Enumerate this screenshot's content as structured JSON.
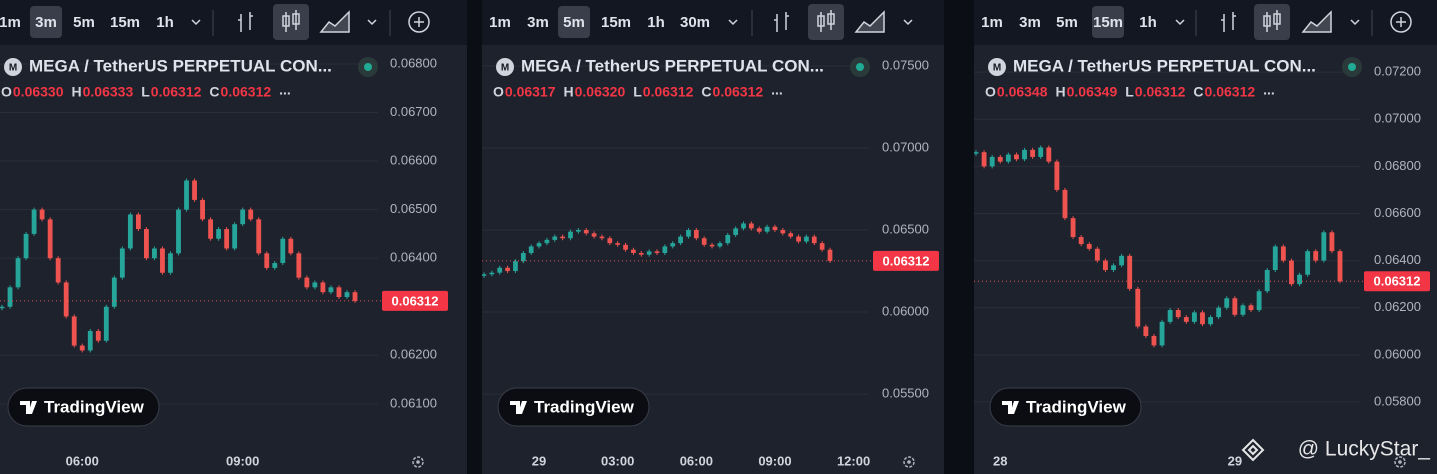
{
  "watermark": "@ LuckyStar_",
  "chart_data": [
    {
      "type": "candlestick",
      "title": "MEGA / TetherUS PERPETUAL CON...",
      "intervals": [
        "1m",
        "3m",
        "5m",
        "15m",
        "1h"
      ],
      "active_interval": 1,
      "ohlc_keys": [
        "O",
        "H",
        "L",
        "C"
      ],
      "ohlc": [
        "0.06330",
        "0.06333",
        "0.06312",
        "0.06312"
      ],
      "more": "...",
      "brand": "TradingView",
      "up_color": "#26a69a",
      "down_color": "#ef5350",
      "grid": true,
      "ylim": [
        0.06005,
        0.06839
      ],
      "yticks": [
        {
          "value": 0.068,
          "label": "0.06800"
        },
        {
          "value": 0.067,
          "label": "0.06700"
        },
        {
          "value": 0.066,
          "label": "0.06600"
        },
        {
          "value": 0.065,
          "label": "0.06500"
        },
        {
          "value": 0.064,
          "label": "0.06400"
        },
        {
          "value": 0.062,
          "label": "0.06200"
        },
        {
          "value": 0.061,
          "label": "0.06100"
        }
      ],
      "xticks": [
        {
          "value": 10,
          "label": "06:00"
        },
        {
          "value": 30,
          "label": "09:00"
        }
      ],
      "last_price": {
        "value": 0.06312,
        "label": "0.06312"
      },
      "values": [
        0.063,
        0.0634,
        0.064,
        0.0645,
        0.065,
        0.0648,
        0.064,
        0.0635,
        0.0628,
        0.0622,
        0.0621,
        0.0625,
        0.0623,
        0.063,
        0.0636,
        0.0642,
        0.0649,
        0.0646,
        0.064,
        0.0642,
        0.0637,
        0.0641,
        0.065,
        0.0656,
        0.0652,
        0.0648,
        0.0644,
        0.0646,
        0.0642,
        0.0647,
        0.065,
        0.0648,
        0.0641,
        0.0638,
        0.0639,
        0.0644,
        0.0641,
        0.0636,
        0.0634,
        0.0635,
        0.0633,
        0.0634,
        0.0632,
        0.0633,
        0.06312
      ]
    },
    {
      "type": "candlestick",
      "title": "MEGA / TetherUS PERPETUAL CON...",
      "intervals": [
        "1m",
        "3m",
        "5m",
        "15m",
        "1h",
        "30m"
      ],
      "active_interval": 2,
      "ohlc_keys": [
        "O",
        "H",
        "L",
        "C"
      ],
      "ohlc": [
        "0.06317",
        "0.06320",
        "0.06312",
        "0.06312"
      ],
      "more": "...",
      "brand": "TradingView",
      "up_color": "#26a69a",
      "down_color": "#ef5350",
      "grid": true,
      "ylim": [
        0.05159,
        0.07628
      ],
      "yticks": [
        {
          "value": 0.075,
          "label": "0.07500"
        },
        {
          "value": 0.07,
          "label": "0.07000"
        },
        {
          "value": 0.065,
          "label": "0.06500"
        },
        {
          "value": 0.06,
          "label": "0.06000"
        },
        {
          "value": 0.055,
          "label": "0.05500"
        }
      ],
      "xticks": [
        {
          "value": 7,
          "label": "29"
        },
        {
          "value": 17,
          "label": "03:00"
        },
        {
          "value": 27,
          "label": "06:00"
        },
        {
          "value": 37,
          "label": "09:00"
        },
        {
          "value": 47,
          "label": "12:00"
        }
      ],
      "last_price": {
        "value": 0.06312,
        "label": "0.06312"
      },
      "values": [
        0.0623,
        0.0624,
        0.0627,
        0.0625,
        0.0631,
        0.0636,
        0.064,
        0.0642,
        0.0644,
        0.0646,
        0.0645,
        0.0649,
        0.065,
        0.0648,
        0.0646,
        0.0645,
        0.0642,
        0.0641,
        0.0638,
        0.0636,
        0.0635,
        0.0637,
        0.0636,
        0.064,
        0.0642,
        0.0646,
        0.065,
        0.0645,
        0.0641,
        0.064,
        0.0642,
        0.0647,
        0.0651,
        0.0654,
        0.0651,
        0.0649,
        0.0652,
        0.065,
        0.0648,
        0.0646,
        0.0643,
        0.0646,
        0.0642,
        0.0638,
        0.06312
      ]
    },
    {
      "type": "candlestick",
      "title": "MEGA / TetherUS PERPETUAL CON...",
      "intervals": [
        "1m",
        "3m",
        "5m",
        "15m",
        "1h"
      ],
      "active_interval": 3,
      "ohlc_keys": [
        "O",
        "H",
        "L",
        "C"
      ],
      "ohlc": [
        "0.06348",
        "0.06349",
        "0.06312",
        "0.06312"
      ],
      "more": "...",
      "brand": "TradingView",
      "up_color": "#26a69a",
      "down_color": "#ef5350",
      "grid": true,
      "ylim": [
        0.05596,
        0.07315
      ],
      "yticks": [
        {
          "value": 0.072,
          "label": "0.07200"
        },
        {
          "value": 0.07,
          "label": "0.07000"
        },
        {
          "value": 0.068,
          "label": "0.06800"
        },
        {
          "value": 0.066,
          "label": "0.06600"
        },
        {
          "value": 0.064,
          "label": "0.06400"
        },
        {
          "value": 0.062,
          "label": "0.06200"
        },
        {
          "value": 0.06,
          "label": "0.06000"
        },
        {
          "value": 0.058,
          "label": "0.05800"
        }
      ],
      "xticks": [
        {
          "value": 3,
          "label": "28"
        },
        {
          "value": 32,
          "label": "29"
        }
      ],
      "last_price": {
        "value": 0.06312,
        "label": "0.06312"
      },
      "values": [
        0.0686,
        0.068,
        0.0684,
        0.0682,
        0.0685,
        0.0683,
        0.0687,
        0.0684,
        0.0688,
        0.0682,
        0.067,
        0.0658,
        0.065,
        0.0647,
        0.0645,
        0.064,
        0.0636,
        0.0638,
        0.0642,
        0.0628,
        0.0612,
        0.0608,
        0.0604,
        0.0614,
        0.0619,
        0.0616,
        0.0614,
        0.0618,
        0.0613,
        0.0616,
        0.062,
        0.0624,
        0.0617,
        0.0621,
        0.0619,
        0.0627,
        0.0636,
        0.0646,
        0.064,
        0.063,
        0.0634,
        0.0644,
        0.064,
        0.0652,
        0.0644,
        0.06312
      ]
    }
  ]
}
